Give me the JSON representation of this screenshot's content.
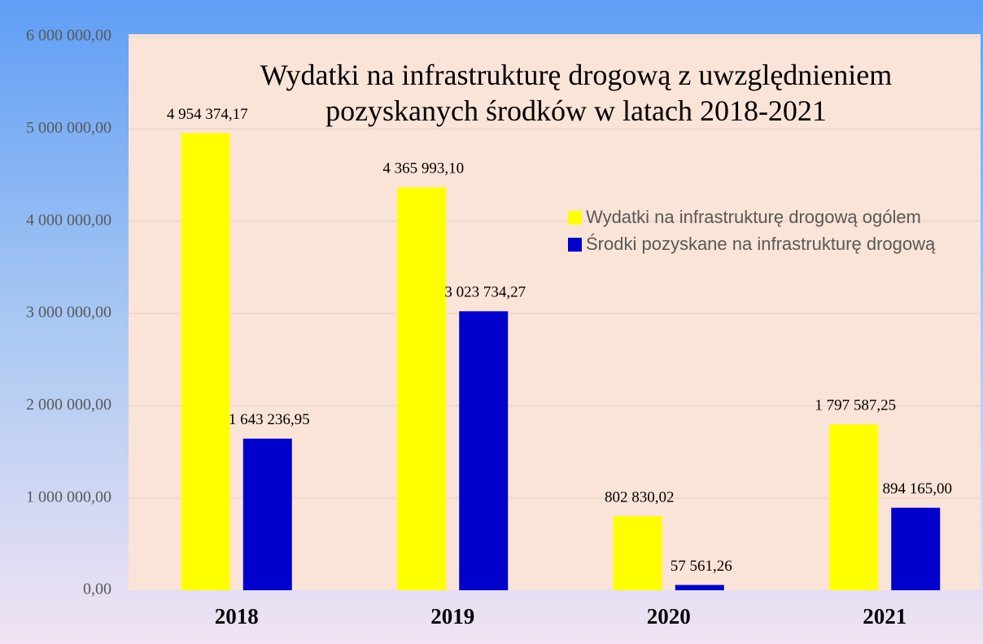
{
  "chart_data": {
    "type": "bar",
    "title": "Wydatki na infrastrukturę drogową z uwzględnieniem pozyskanych środków w latach 2018-2021",
    "categories": [
      "2018",
      "2019",
      "2020",
      "2021"
    ],
    "series": [
      {
        "name": "Wydatki na infrastrukturę drogową ogólem",
        "color": "#ffff00",
        "values": [
          4954374.17,
          4365993.1,
          802830.02,
          1797587.25
        ],
        "value_labels": [
          "4 954 374,17",
          "4 365 993,10",
          "802 830,02",
          "1 797 587,25"
        ]
      },
      {
        "name": "Środki pozyskane na infrastrukturę drogową",
        "color": "#0000cc",
        "values": [
          1643236.95,
          3023734.27,
          57561.26,
          894165.0
        ],
        "value_labels": [
          "1 643 236,95",
          "3 023 734,27",
          "57 561,26",
          "894 165,00"
        ]
      }
    ],
    "ylim": [
      0,
      6000000
    ],
    "yticks": [
      {
        "value": 0,
        "label": "0,00"
      },
      {
        "value": 1000000,
        "label": "1 000 000,00"
      },
      {
        "value": 2000000,
        "label": "2 000 000,00"
      },
      {
        "value": 3000000,
        "label": "3 000 000,00"
      },
      {
        "value": 4000000,
        "label": "4 000 000,00"
      },
      {
        "value": 5000000,
        "label": "5 000 000,00"
      },
      {
        "value": 6000000,
        "label": "6 000 000,00"
      }
    ],
    "grid": true,
    "legend": "right"
  }
}
